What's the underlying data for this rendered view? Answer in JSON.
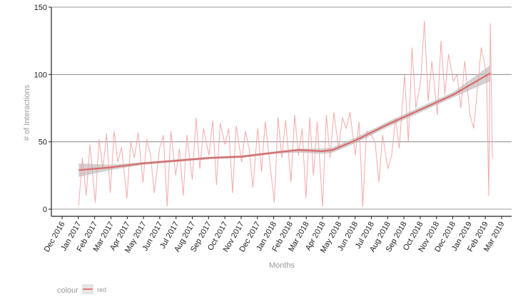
{
  "chart_data": {
    "type": "line",
    "xlabel": "Months",
    "ylabel": "# of Interactions",
    "ylim": [
      0,
      150
    ],
    "y_ticks": [
      0,
      50,
      100,
      150
    ],
    "x_ticks": [
      "Dec 2016",
      "Jan 2017",
      "Feb 2017",
      "Mar 2017",
      "Apr 2017",
      "May 2017",
      "Jun 2017",
      "Jul 2017",
      "Aug 2017",
      "Sep 2017",
      "Oct 2017",
      "Nov 2017",
      "Dec 2017",
      "Jan 2018",
      "Feb 2018",
      "Mar 2018",
      "Apr 2018",
      "May 2018",
      "Jun 2018",
      "Jul 2018",
      "Aug 2018",
      "Sep 2018",
      "Oct 2018",
      "Nov 2018",
      "Dec 2018",
      "Jan 2019",
      "Feb 2019",
      "Mar 2019"
    ],
    "grid": "horizontal major lines",
    "legend": {
      "title": "colour",
      "position": "bottom-left",
      "items": [
        {
          "label": "red",
          "color": "#f08080"
        }
      ]
    },
    "series": [
      {
        "name": "red",
        "kind": "daily raw counts (line)",
        "color": "#f4a0a0",
        "x": [
          "2017-01-01",
          "2017-01-08",
          "2017-01-15",
          "2017-01-22",
          "2017-02-01",
          "2017-02-08",
          "2017-02-15",
          "2017-02-22",
          "2017-03-01",
          "2017-03-08",
          "2017-03-15",
          "2017-03-22",
          "2017-04-01",
          "2017-04-08",
          "2017-04-15",
          "2017-04-22",
          "2017-05-01",
          "2017-05-08",
          "2017-05-15",
          "2017-05-22",
          "2017-06-01",
          "2017-06-08",
          "2017-06-15",
          "2017-06-22",
          "2017-07-01",
          "2017-07-08",
          "2017-07-15",
          "2017-07-22",
          "2017-08-01",
          "2017-08-08",
          "2017-08-15",
          "2017-08-22",
          "2017-09-01",
          "2017-09-08",
          "2017-09-15",
          "2017-09-22",
          "2017-10-01",
          "2017-10-08",
          "2017-10-15",
          "2017-10-22",
          "2017-11-01",
          "2017-11-08",
          "2017-11-15",
          "2017-11-22",
          "2017-12-01",
          "2017-12-08",
          "2017-12-15",
          "2017-12-22",
          "2018-01-01",
          "2018-01-08",
          "2018-01-15",
          "2018-01-22",
          "2018-02-01",
          "2018-02-08",
          "2018-02-15",
          "2018-02-22",
          "2018-03-01",
          "2018-03-08",
          "2018-03-15",
          "2018-03-22",
          "2018-04-01",
          "2018-04-08",
          "2018-04-15",
          "2018-04-22",
          "2018-05-01",
          "2018-05-08",
          "2018-05-15",
          "2018-05-22",
          "2018-06-01",
          "2018-06-08",
          "2018-06-15",
          "2018-06-22",
          "2018-07-01",
          "2018-07-08",
          "2018-07-15",
          "2018-07-22",
          "2018-08-01",
          "2018-08-08",
          "2018-08-15",
          "2018-08-22",
          "2018-09-01",
          "2018-09-08",
          "2018-09-15",
          "2018-09-22",
          "2018-10-01",
          "2018-10-08",
          "2018-10-15",
          "2018-10-22",
          "2018-11-01",
          "2018-11-08",
          "2018-11-15",
          "2018-11-22",
          "2018-12-01",
          "2018-12-08",
          "2018-12-15",
          "2018-12-22",
          "2019-01-01",
          "2019-01-08",
          "2019-01-15",
          "2019-01-22",
          "2019-02-01",
          "2019-02-05",
          "2019-02-08",
          "2019-02-12"
        ],
        "y": [
          3,
          38,
          10,
          48,
          5,
          52,
          30,
          56,
          12,
          58,
          35,
          46,
          8,
          50,
          38,
          57,
          20,
          52,
          40,
          12,
          45,
          55,
          2,
          58,
          25,
          45,
          10,
          55,
          22,
          68,
          30,
          60,
          40,
          66,
          18,
          64,
          48,
          60,
          12,
          62,
          35,
          58,
          45,
          16,
          60,
          28,
          65,
          40,
          5,
          68,
          38,
          66,
          20,
          70,
          40,
          60,
          8,
          68,
          25,
          65,
          2,
          70,
          38,
          72,
          45,
          68,
          60,
          72,
          40,
          65,
          2,
          58,
          55,
          50,
          20,
          55,
          30,
          40,
          68,
          45,
          100,
          50,
          120,
          75,
          95,
          140,
          80,
          110,
          70,
          125,
          85,
          115,
          95,
          100,
          75,
          110,
          70,
          60,
          90,
          120,
          100,
          10,
          138,
          38
        ]
      },
      {
        "name": "red",
        "kind": "smoothed trend",
        "color": "#d96b6b",
        "x": [
          "2017-01-01",
          "2017-03-01",
          "2017-05-01",
          "2017-07-01",
          "2017-09-01",
          "2017-11-01",
          "2018-01-01",
          "2018-02-15",
          "2018-04-01",
          "2018-04-20",
          "2018-06-01",
          "2018-08-01",
          "2018-10-01",
          "2018-12-01",
          "2019-02-08"
        ],
        "y": [
          29,
          31,
          34,
          36,
          38,
          39,
          42,
          44,
          43,
          44,
          51,
          63,
          74,
          85,
          101
        ],
        "band_lower": [
          24,
          29,
          33,
          35,
          37,
          38,
          41,
          42,
          41,
          42,
          49,
          61,
          72,
          83,
          95
        ],
        "band_upper": [
          34,
          33,
          35,
          37,
          39,
          40,
          43,
          45,
          45,
          46,
          53,
          65,
          76,
          87,
          107
        ]
      }
    ]
  }
}
